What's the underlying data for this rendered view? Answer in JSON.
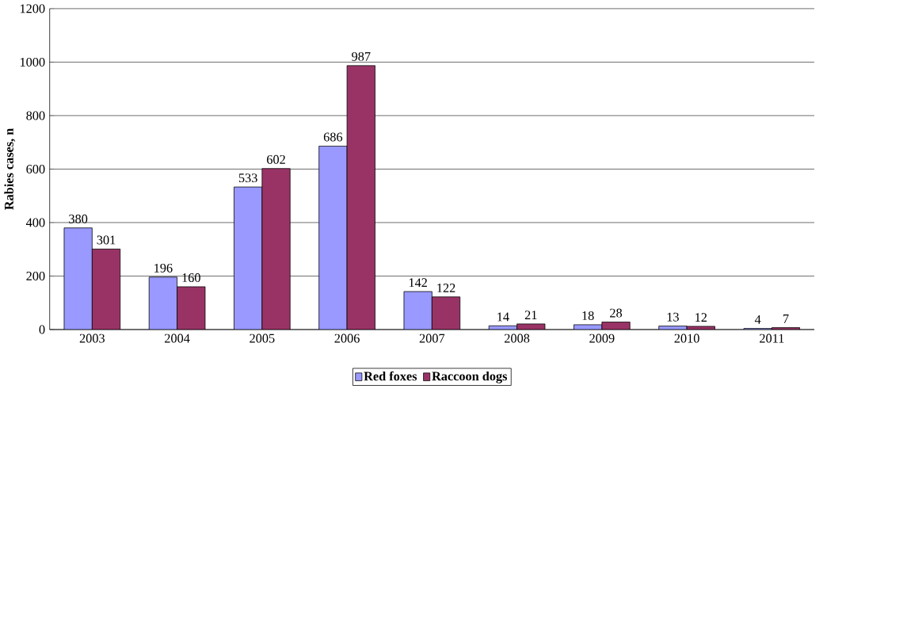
{
  "chart_data": {
    "type": "bar",
    "ylabel": "Rabies cases, n",
    "categories": [
      "2003",
      "2004",
      "2005",
      "2006",
      "2007",
      "2008",
      "2009",
      "2010",
      "2011"
    ],
    "series": [
      {
        "name": "Red foxes",
        "color": "#9999ff",
        "values": [
          380,
          196,
          533,
          686,
          142,
          14,
          18,
          13,
          4
        ]
      },
      {
        "name": "Raccoon dogs",
        "color": "#993366",
        "values": [
          301,
          160,
          602,
          987,
          122,
          21,
          28,
          12,
          7
        ]
      }
    ],
    "ylim": [
      0,
      1200
    ],
    "yticks": [
      0,
      200,
      400,
      600,
      800,
      1000,
      1200
    ],
    "grid": "y",
    "legend": "bottom",
    "data_labels": true
  }
}
